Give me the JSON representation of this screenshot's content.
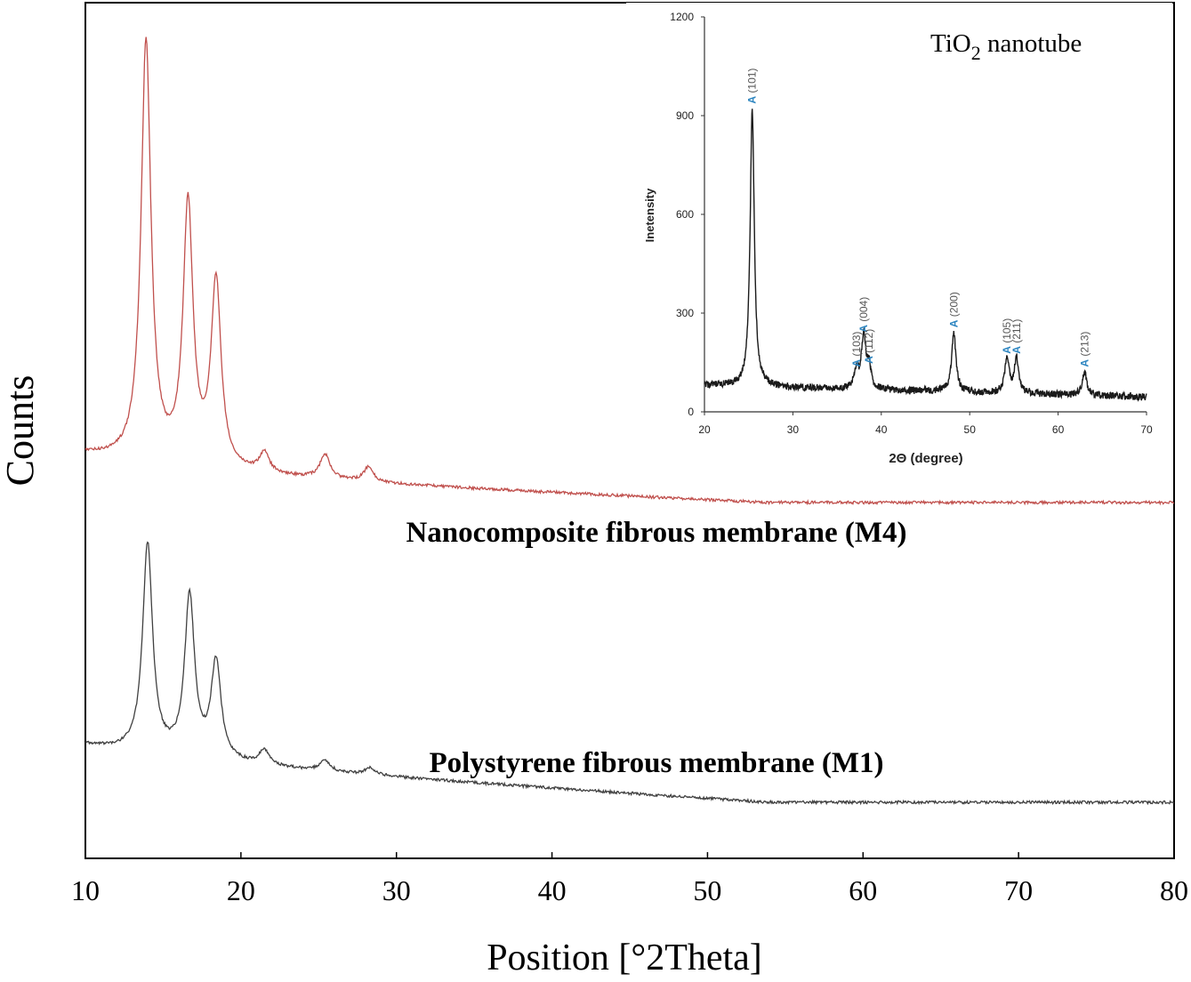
{
  "chart_data": [
    {
      "type": "line",
      "xlabel": "Position [°2Theta]",
      "ylabel": "Counts",
      "xlim": [
        10,
        80
      ],
      "xticks": [
        10,
        20,
        30,
        40,
        50,
        60,
        70,
        80
      ],
      "yticks_shown": false,
      "grid": false,
      "series": [
        {
          "name": "Nanocomposite fibrous membrane (M4)",
          "color": "#c0504d",
          "relative_offset": 1,
          "peaks": [
            {
              "x": 13.9,
              "height": 0.86
            },
            {
              "x": 16.6,
              "height": 0.53
            },
            {
              "x": 18.4,
              "height": 0.38
            },
            {
              "x": 21.5,
              "height": 0.04
            },
            {
              "x": 25.4,
              "height": 0.05
            },
            {
              "x": 28.2,
              "height": 0.03
            }
          ]
        },
        {
          "name": "Polystyrene fibrous membrane (M1)",
          "color": "#404040",
          "relative_offset": 0,
          "peaks": [
            {
              "x": 14.0,
              "height": 0.56
            },
            {
              "x": 16.7,
              "height": 0.43
            },
            {
              "x": 18.4,
              "height": 0.26
            },
            {
              "x": 21.5,
              "height": 0.04
            },
            {
              "x": 25.4,
              "height": 0.03
            },
            {
              "x": 28.3,
              "height": 0.02
            }
          ]
        }
      ]
    },
    {
      "type": "line",
      "title": "TiO2 nanotube",
      "title_main": "TiO",
      "title_sub": "2",
      "title_rest": " nanotube",
      "xlabel": "2Θ (degree)",
      "ylabel": "Inetensity",
      "xlim": [
        20,
        70
      ],
      "ylim": [
        0,
        1200
      ],
      "xticks": [
        20,
        30,
        40,
        50,
        60,
        70
      ],
      "yticks": [
        0,
        300,
        600,
        900,
        1200
      ],
      "grid": false,
      "color": "#1a1a1a",
      "label_color": "#2e86c1",
      "peaks": [
        {
          "x": 25.4,
          "y": 920,
          "label": "A (101)"
        },
        {
          "x": 37.2,
          "y": 120,
          "label": "A (103)"
        },
        {
          "x": 38.0,
          "y": 225,
          "label": "A (004)"
        },
        {
          "x": 38.6,
          "y": 130,
          "label": "A (112)"
        },
        {
          "x": 48.2,
          "y": 240,
          "label": "A (200)"
        },
        {
          "x": 54.2,
          "y": 160,
          "label": "A (105)"
        },
        {
          "x": 55.3,
          "y": 160,
          "label": "A (211)"
        },
        {
          "x": 63.0,
          "y": 120,
          "label": "A (213)"
        }
      ]
    }
  ]
}
